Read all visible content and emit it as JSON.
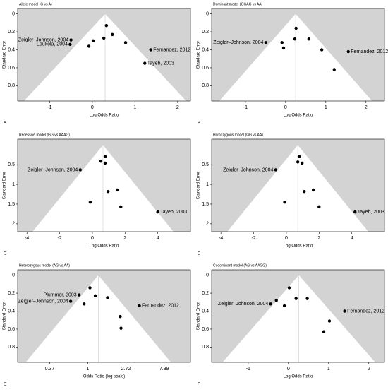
{
  "chart_data": [
    {
      "type": "funnel",
      "title": "Allele model (G vs A)",
      "panel_label": "A",
      "xlabel": "Log Odds Ratio",
      "ylabel": "Standard Error",
      "x": [
        0.33,
        0.47,
        0.27,
        0.02,
        -0.08,
        0.78,
        -0.5,
        -0.52,
        1.37,
        1.23
      ],
      "y": [
        0.13,
        0.23,
        0.27,
        0.3,
        0.36,
        0.32,
        0.29,
        0.34,
        0.4,
        0.55
      ],
      "point_labels": [
        null,
        null,
        null,
        null,
        null,
        null,
        "Zeigler–Johnson, 2004",
        "Loukola, 2004",
        "Fernandez, 2012",
        "Tayeb, 2003"
      ],
      "pooled_estimate": 0.3,
      "xlim": [
        -1.75,
        2.3
      ],
      "ylim": [
        -0.06,
        0.97
      ],
      "xticks": [
        -1,
        0,
        1,
        2
      ],
      "yticks": [
        0,
        0.2,
        0.4,
        0.6,
        0.8
      ],
      "log_x": false
    },
    {
      "type": "funnel",
      "title": "Dominant model (GGAG vs AA)",
      "panel_label": "B",
      "xlabel": "Log Odds Ratio",
      "ylabel": "Standard Error",
      "x": [
        -0.49,
        -0.09,
        -0.05,
        0.26,
        0.23,
        0.58,
        0.9,
        1.21,
        1.56
      ],
      "y": [
        0.32,
        0.32,
        0.38,
        0.16,
        0.28,
        0.28,
        0.4,
        0.62,
        0.42
      ],
      "point_labels": [
        "Zeigler–Johnson, 2004",
        null,
        null,
        null,
        null,
        null,
        null,
        null,
        "Fernandez, 2012"
      ],
      "pooled_estimate": 0.25,
      "xlim": [
        -1.84,
        2.46
      ],
      "ylim": [
        -0.06,
        0.97
      ],
      "xticks": [
        -1,
        0,
        1,
        2
      ],
      "yticks": [
        0,
        0.2,
        0.4,
        0.6,
        0.8
      ],
      "log_x": false
    },
    {
      "type": "funnel",
      "title": "Recessive model (GG vs AAAG)",
      "panel_label": "C",
      "xlabel": "Log Odds Ratio",
      "ylabel": "Standard Error",
      "x": [
        -0.74,
        0.78,
        0.52,
        0.78,
        0.96,
        1.52,
        -0.13,
        1.74,
        4.0
      ],
      "y": [
        0.63,
        0.29,
        0.41,
        0.46,
        1.18,
        1.14,
        1.45,
        1.57,
        1.7
      ],
      "point_labels": [
        "Zeigler–Johnson, 2004",
        null,
        null,
        null,
        null,
        null,
        null,
        null,
        "Tayeb, 2003"
      ],
      "pooled_estimate": 0.65,
      "xlim": [
        -4.57,
        6.0
      ],
      "ylim": [
        -0.15,
        2.2
      ],
      "xticks": [
        -4,
        -2,
        0,
        2,
        4
      ],
      "yticks": [
        0.5,
        1,
        1.5,
        2
      ],
      "log_x": false
    },
    {
      "type": "funnel",
      "title": "Homozygous model (GG vs AA)",
      "panel_label": "D",
      "xlabel": "Log Odds Ratio",
      "ylabel": "Standard Error",
      "x": [
        -0.65,
        0.78,
        0.7,
        0.96,
        1.09,
        1.65,
        -0.1,
        2.0,
        4.2
      ],
      "y": [
        0.63,
        0.29,
        0.43,
        0.46,
        1.18,
        1.14,
        1.45,
        1.57,
        1.7
      ],
      "point_labels": [
        "Zeigler–Johnson, 2004",
        null,
        null,
        null,
        null,
        null,
        null,
        null,
        "Tayeb, 2003"
      ],
      "pooled_estimate": 0.7,
      "xlim": [
        -4.57,
        6.0
      ],
      "ylim": [
        -0.15,
        2.2
      ],
      "xticks": [
        -4,
        -2,
        0,
        2,
        4
      ],
      "yticks": [
        0.5,
        1,
        1.5,
        2
      ],
      "log_x": false
    },
    {
      "type": "funnel",
      "title": "Heterozygous model (AG vs AA)",
      "panel_label": "E",
      "xlabel": "Odds Ratio (log scale)",
      "ylabel": "Standard Error",
      "x": [
        1.06,
        1.22,
        0.8,
        0.91,
        0.64,
        1.68,
        3.86,
        2.34,
        2.39
      ],
      "y": [
        0.14,
        0.23,
        0.22,
        0.32,
        0.29,
        0.25,
        0.34,
        0.46,
        0.59
      ],
      "point_labels": [
        null,
        null,
        "Plummer, 2003",
        null,
        "Zeigler–Johnson, 2004",
        null,
        "Fernandez, 2012",
        null,
        null
      ],
      "pooled_estimate": 1.32,
      "xlim": [
        0.16,
        14.7
      ],
      "ylim": [
        -0.06,
        0.97
      ],
      "xticks": [
        0.37,
        1,
        2.72,
        7.39
      ],
      "yticks": [
        0,
        0.2,
        0.4,
        0.6,
        0.8
      ],
      "log_x": true
    },
    {
      "type": "funnel",
      "title": "Codominant model (AG vs AAGG)",
      "panel_label": "F",
      "xlabel": "Log Odds Ratio",
      "ylabel": "Standard Error",
      "x": [
        0.02,
        -0.3,
        0.19,
        -0.1,
        0.47,
        -0.44,
        1.4,
        1.02,
        0.88
      ],
      "y": [
        0.14,
        0.28,
        0.26,
        0.34,
        0.26,
        0.32,
        0.4,
        0.51,
        0.63
      ],
      "point_labels": [
        null,
        null,
        null,
        null,
        null,
        "Zeigler–Johnson, 2004",
        "Fernandez, 2012",
        null,
        null
      ],
      "pooled_estimate": 0.26,
      "xlim": [
        -1.91,
        2.39
      ],
      "ylim": [
        -0.06,
        0.97
      ],
      "xticks": [
        -1,
        0,
        1,
        2
      ],
      "yticks": [
        0,
        0.2,
        0.4,
        0.6,
        0.8
      ],
      "log_x": false
    }
  ]
}
